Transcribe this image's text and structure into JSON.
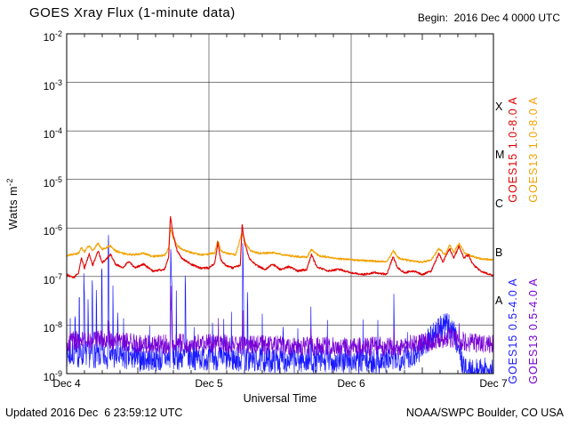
{
  "header": {
    "title": "GOES Xray Flux (1-minute data)",
    "begin": "Begin:  2016 Dec 4 0000 UTC"
  },
  "footer": {
    "updated": "Updated 2016 Dec  6 23:59:12 UTC",
    "credit": "NOAA/SWPC Boulder, CO USA"
  },
  "chart_data": {
    "type": "line",
    "title": "GOES Xray Flux (1-minute data)",
    "xlabel": "Universal Time",
    "ylabel": {
      "text": "Watts m",
      "sup": "-2"
    },
    "x_unit_hours_since": "2016 Dec 4 0000 UTC",
    "xlim": [
      0,
      72
    ],
    "y_log_range": [
      -9,
      -2
    ],
    "sample_step_hours": 0.05,
    "spike_falloff_dex": 2.0,
    "noise_seed": 7,
    "x_ticks": [
      {
        "t": 0,
        "label": "Dec 4"
      },
      {
        "t": 24,
        "label": "Dec 5"
      },
      {
        "t": 48,
        "label": "Dec 6"
      },
      {
        "t": 72,
        "label": "Dec 7"
      }
    ],
    "y_ticks": [
      -2,
      -3,
      -4,
      -5,
      -6,
      -7,
      -8,
      -9
    ],
    "grid": {
      "h_exponents": [
        -3,
        -4,
        -5,
        -6,
        -7,
        -8
      ],
      "v_hours": [
        24,
        48
      ]
    },
    "flare_classes": [
      {
        "label": "X",
        "log_center": -3.5
      },
      {
        "label": "M",
        "log_center": -4.5
      },
      {
        "label": "C",
        "log_center": -5.5
      },
      {
        "label": "B",
        "log_center": -6.5
      },
      {
        "label": "A",
        "log_center": -7.5
      }
    ],
    "right_labels": [
      {
        "text": "GOES15 1.0-8.0 A",
        "color": "#e00000",
        "column": "inner",
        "half": "top"
      },
      {
        "text": "GOES13 1.0-8.0 A",
        "color": "#f2a200",
        "column": "outer",
        "half": "top"
      },
      {
        "text": "GOES15 0.5-4.0 A",
        "color": "#1a1aff",
        "column": "inner",
        "half": "bottom"
      },
      {
        "text": "GOES13 0.5-4.0 A",
        "color": "#7700d4",
        "column": "outer",
        "half": "bottom"
      }
    ],
    "series": [
      {
        "name": "GOES15 0.5-4.0 A",
        "satellite": "GOES-15",
        "channel": "0.5-4.0 A",
        "color": "#1a1aff",
        "width": 0.7,
        "noise_dex": 0.26,
        "anchors": [
          [
            0,
            2.4e-09
          ],
          [
            4,
            2.4e-09
          ],
          [
            8,
            2.2e-09
          ],
          [
            12,
            2e-09
          ],
          [
            16,
            2e-09
          ],
          [
            20,
            2.2e-09
          ],
          [
            24,
            2.1e-09
          ],
          [
            28,
            2e-09
          ],
          [
            32,
            1.9e-09
          ],
          [
            36,
            1.9e-09
          ],
          [
            40,
            1.9e-09
          ],
          [
            44,
            1.8e-09
          ],
          [
            48,
            1.8e-09
          ],
          [
            52,
            1.8e-09
          ],
          [
            56,
            2e-09
          ],
          [
            59,
            2.6e-09
          ],
          [
            61,
            5e-09
          ],
          [
            62.5,
            8e-09
          ],
          [
            64,
            1e-08
          ],
          [
            65.2,
            8e-09
          ],
          [
            66.0,
            4e-09
          ],
          [
            66.8,
            1.6e-09
          ],
          [
            67.5,
            1.1e-09
          ],
          [
            69,
            1.1e-09
          ],
          [
            71,
            1.2e-09
          ],
          [
            72,
            1.2e-09
          ]
        ],
        "spikes": [
          [
            0.6,
            1e-08,
            0.04,
            0.08
          ],
          [
            1.4,
            2.5e-08,
            0.04,
            0.1
          ],
          [
            2.1,
            6e-08,
            0.05,
            0.12
          ],
          [
            2.9,
            1.4e-07,
            0.05,
            0.18
          ],
          [
            3.6,
            3e-08,
            0.04,
            0.1
          ],
          [
            4.3,
            9e-08,
            0.05,
            0.15
          ],
          [
            5.0,
            4e-08,
            0.04,
            0.1
          ],
          [
            5.9,
            1.2e-07,
            0.05,
            0.15
          ],
          [
            7.0,
            6e-07,
            0.06,
            0.2
          ],
          [
            7.8,
            6e-08,
            0.04,
            0.12
          ],
          [
            8.6,
            2e-08,
            0.04,
            0.1
          ],
          [
            9.6,
            1.2e-08,
            0.04,
            0.08
          ],
          [
            11.5,
            8e-09,
            0.04,
            0.08
          ],
          [
            14,
            6e-09,
            0.04,
            0.08
          ],
          [
            17.55,
            3e-07,
            0.08,
            0.3
          ],
          [
            18.5,
            3e-08,
            0.04,
            0.1
          ],
          [
            20.0,
            9e-08,
            0.05,
            0.15
          ],
          [
            21.5,
            1.2e-08,
            0.04,
            0.08
          ],
          [
            24.6,
            1.4e-08,
            0.04,
            0.1
          ],
          [
            26.5,
            1e-08,
            0.04,
            0.08
          ],
          [
            27.8,
            1.5e-08,
            0.04,
            0.08
          ],
          [
            29.7,
            5e-07,
            0.06,
            0.2
          ],
          [
            30.5,
            5e-08,
            0.04,
            0.1
          ],
          [
            33,
            1.2e-08,
            0.04,
            0.08
          ],
          [
            36.5,
            1.5e-08,
            0.04,
            0.1
          ],
          [
            39,
            8e-09,
            0.04,
            0.08
          ],
          [
            41.2,
            2e-08,
            0.05,
            0.1
          ],
          [
            44,
            1e-08,
            0.04,
            0.08
          ],
          [
            47,
            8e-09,
            0.04,
            0.08
          ],
          [
            50,
            1.2e-08,
            0.04,
            0.08
          ],
          [
            52.5,
            8e-09,
            0.04,
            0.08
          ],
          [
            55.2,
            2.5e-08,
            0.05,
            0.12
          ],
          [
            57.5,
            1e-08,
            0.04,
            0.08
          ]
        ]
      },
      {
        "name": "GOES13 0.5-4.0 A",
        "satellite": "GOES-13",
        "channel": "0.5-4.0 A",
        "color": "#7700d4",
        "width": 0.7,
        "noise_dex": 0.2,
        "anchors": [
          [
            0,
            4.5e-09
          ],
          [
            3,
            5e-09
          ],
          [
            6,
            5e-09
          ],
          [
            9,
            4.5e-09
          ],
          [
            12,
            4.2e-09
          ],
          [
            16,
            4e-09
          ],
          [
            20,
            4.2e-09
          ],
          [
            24,
            4.2e-09
          ],
          [
            28,
            4e-09
          ],
          [
            32,
            3.9e-09
          ],
          [
            36,
            3.8e-09
          ],
          [
            40,
            3.8e-09
          ],
          [
            44,
            3.7e-09
          ],
          [
            48,
            3.6e-09
          ],
          [
            52,
            3.6e-09
          ],
          [
            56,
            3.7e-09
          ],
          [
            60,
            4.2e-09
          ],
          [
            62.5,
            5e-09
          ],
          [
            64.5,
            5.5e-09
          ],
          [
            66,
            5e-09
          ],
          [
            68,
            4.4e-09
          ],
          [
            70,
            4.2e-09
          ],
          [
            72,
            4e-09
          ]
        ],
        "spikes": [
          [
            7.0,
            1.6e-08,
            0.06,
            0.12
          ],
          [
            17.55,
            5e-08,
            0.08,
            0.3
          ],
          [
            25.6,
            1.2e-08,
            0.05,
            0.1
          ],
          [
            29.7,
            2.2e-08,
            0.06,
            0.15
          ],
          [
            41.2,
            1e-08,
            0.05,
            0.1
          ],
          [
            55.2,
            1.2e-08,
            0.05,
            0.1
          ],
          [
            62.8,
            1.1e-08,
            0.08,
            0.15
          ],
          [
            64.6,
            1.3e-08,
            0.08,
            0.15
          ],
          [
            66.2,
            1.1e-08,
            0.08,
            0.15
          ]
        ]
      },
      {
        "name": "GOES13 1.0-8.0 A",
        "satellite": "GOES-13",
        "channel": "1.0-8.0 A",
        "color": "#f2a200",
        "width": 1.1,
        "noise_dex": 0.02,
        "anchors": [
          [
            0,
            2.7e-07
          ],
          [
            2.0,
            3e-07
          ],
          [
            2.5,
            3.9e-07
          ],
          [
            3.0,
            3.2e-07
          ],
          [
            3.8,
            4.4e-07
          ],
          [
            4.4,
            3.4e-07
          ],
          [
            5.3,
            4.8e-07
          ],
          [
            6.0,
            3.6e-07
          ],
          [
            7.4,
            4.3e-07
          ],
          [
            8.2,
            3.4e-07
          ],
          [
            9.5,
            3e-07
          ],
          [
            11.0,
            2.8e-07
          ],
          [
            13.0,
            3e-07
          ],
          [
            14.5,
            2.6e-07
          ],
          [
            16.5,
            2.7e-07
          ],
          [
            17.2,
            3.8e-07
          ],
          [
            17.5,
            1e-06
          ],
          [
            17.9,
            6.5e-07
          ],
          [
            18.6,
            4.4e-07
          ],
          [
            19.5,
            3.6e-07
          ],
          [
            21.0,
            3.1e-07
          ],
          [
            23.0,
            2.8e-07
          ],
          [
            25.0,
            3.1e-07
          ],
          [
            25.5,
            5.5e-07
          ],
          [
            26.0,
            3.4e-07
          ],
          [
            27.0,
            3e-07
          ],
          [
            28.5,
            2.8e-07
          ],
          [
            29.6,
            8e-07
          ],
          [
            30.2,
            4.8e-07
          ],
          [
            31.0,
            3.4e-07
          ],
          [
            32.5,
            3e-07
          ],
          [
            34.8,
            3.1e-07
          ],
          [
            36.5,
            2.8e-07
          ],
          [
            38.5,
            2.6e-07
          ],
          [
            40.5,
            2.5e-07
          ],
          [
            41.3,
            3.6e-07
          ],
          [
            42.5,
            2.7e-07
          ],
          [
            45.0,
            2.4e-07
          ],
          [
            48.0,
            2.2e-07
          ],
          [
            51.0,
            2.1e-07
          ],
          [
            54.0,
            2e-07
          ],
          [
            55.1,
            3.4e-07
          ],
          [
            56.0,
            2.4e-07
          ],
          [
            58.0,
            2.1e-07
          ],
          [
            60.0,
            2e-07
          ],
          [
            61.5,
            2.2e-07
          ],
          [
            62.8,
            3.8e-07
          ],
          [
            63.8,
            2.8e-07
          ],
          [
            64.6,
            4.4e-07
          ],
          [
            65.3,
            3.2e-07
          ],
          [
            66.2,
            4.8e-07
          ],
          [
            67.2,
            3e-07
          ],
          [
            68.5,
            2.6e-07
          ],
          [
            70.0,
            2.3e-07
          ],
          [
            72,
            2.2e-07
          ]
        ],
        "spikes": []
      },
      {
        "name": "GOES15 1.0-8.0 A",
        "satellite": "GOES-15",
        "channel": "1.0-8.0 A",
        "color": "#e00000",
        "width": 1.1,
        "noise_dex": 0.02,
        "anchors": [
          [
            0,
            1.1e-07
          ],
          [
            1.2,
            9.5e-08
          ],
          [
            2.0,
            1.2e-07
          ],
          [
            2.5,
            2.4e-07
          ],
          [
            3.0,
            1.5e-07
          ],
          [
            3.8,
            2.9e-07
          ],
          [
            4.4,
            1.7e-07
          ],
          [
            5.3,
            3.4e-07
          ],
          [
            6.0,
            1.9e-07
          ],
          [
            6.8,
            2.4e-07
          ],
          [
            7.4,
            2.9e-07
          ],
          [
            8.2,
            1.8e-07
          ],
          [
            9.5,
            1.5e-07
          ],
          [
            10.5,
            2.1e-07
          ],
          [
            11.5,
            1.5e-07
          ],
          [
            13.0,
            1.8e-07
          ],
          [
            14.5,
            1.3e-07
          ],
          [
            16.5,
            1.4e-07
          ],
          [
            17.2,
            2.5e-07
          ],
          [
            17.5,
            1.8e-06
          ],
          [
            17.9,
            8e-07
          ],
          [
            18.6,
            3.5e-07
          ],
          [
            19.5,
            2.3e-07
          ],
          [
            21.0,
            1.8e-07
          ],
          [
            22.5,
            1.5e-07
          ],
          [
            24.0,
            1.5e-07
          ],
          [
            25.0,
            1.9e-07
          ],
          [
            25.5,
            5e-07
          ],
          [
            26.0,
            2.2e-07
          ],
          [
            26.8,
            1.7e-07
          ],
          [
            28.0,
            1.5e-07
          ],
          [
            29.3,
            1.7e-07
          ],
          [
            29.6,
            1.2e-06
          ],
          [
            30.0,
            5e-07
          ],
          [
            30.8,
            2.4e-07
          ],
          [
            32.0,
            1.7e-07
          ],
          [
            33.5,
            1.4e-07
          ],
          [
            34.8,
            1.8e-07
          ],
          [
            36.0,
            1.4e-07
          ],
          [
            37.5,
            1.6e-07
          ],
          [
            39.0,
            1.3e-07
          ],
          [
            40.5,
            1.4e-07
          ],
          [
            41.3,
            2.8e-07
          ],
          [
            42.2,
            1.6e-07
          ],
          [
            44.0,
            1.3e-07
          ],
          [
            46.0,
            1.4e-07
          ],
          [
            48.0,
            1.2e-07
          ],
          [
            50.0,
            1.1e-07
          ],
          [
            52.0,
            1.2e-07
          ],
          [
            54.0,
            1.1e-07
          ],
          [
            55.1,
            2.6e-07
          ],
          [
            55.8,
            1.5e-07
          ],
          [
            57.0,
            1.2e-07
          ],
          [
            58.5,
            1.3e-07
          ],
          [
            60.0,
            1.1e-07
          ],
          [
            61.5,
            1.3e-07
          ],
          [
            62.8,
            3e-07
          ],
          [
            63.5,
            2e-07
          ],
          [
            64.6,
            3.8e-07
          ],
          [
            65.3,
            2.4e-07
          ],
          [
            66.2,
            4.2e-07
          ],
          [
            67.0,
            2.4e-07
          ],
          [
            67.8,
            2.8e-07
          ],
          [
            68.5,
            1.8e-07
          ],
          [
            69.5,
            1.4e-07
          ],
          [
            70.5,
            1.2e-07
          ],
          [
            72,
            1.05e-07
          ]
        ],
        "spikes": []
      }
    ]
  }
}
